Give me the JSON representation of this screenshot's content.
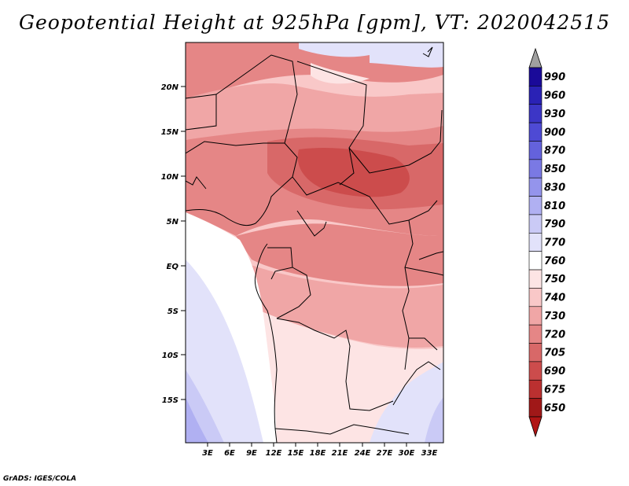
{
  "title": "Geopotential Height at 925hPa [gpm], VT: 2020042515",
  "credit": "GrADS: IGES/COLA",
  "map": {
    "variable": "Geopotential Height",
    "level": "925hPa",
    "units": "gpm",
    "valid_time": "2020042515",
    "lat_labels": [
      "20N",
      "15N",
      "10N",
      "5N",
      "EQ",
      "5S",
      "10S",
      "15S"
    ],
    "lon_labels": [
      "3E",
      "6E",
      "9E",
      "12E",
      "15E",
      "18E",
      "21E",
      "24E",
      "27E",
      "30E",
      "33E"
    ]
  },
  "colorbar": {
    "levels": [
      "990",
      "960",
      "930",
      "900",
      "870",
      "850",
      "830",
      "810",
      "790",
      "770",
      "760",
      "750",
      "740",
      "730",
      "720",
      "705",
      "690",
      "675",
      "650"
    ],
    "colors": [
      "#1a0a99",
      "#2a22b5",
      "#3c36c6",
      "#4e4ad4",
      "#6462dc",
      "#7a79e4",
      "#9494ec",
      "#b0b0f2",
      "#cacaf6",
      "#e2e2fa",
      "#ffffff",
      "#fde4e4",
      "#f9c8c8",
      "#f0a6a6",
      "#e58686",
      "#d86868",
      "#cc4c4c",
      "#bb3030",
      "#a01818"
    ],
    "top_arrow_color": "#a0a0a0",
    "bottom_arrow_color": "#b01515"
  }
}
